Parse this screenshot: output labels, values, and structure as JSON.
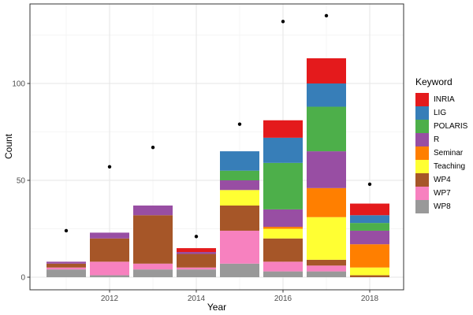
{
  "figure": {
    "background": "#ffffff"
  },
  "chart_data": {
    "type": "bar",
    "stacked": true,
    "title": "",
    "xlabel": "Year",
    "ylabel": "Count",
    "legend_title": "Keyword",
    "legend_position": "right",
    "grid": true,
    "x": [
      2011,
      2012,
      2013,
      2014,
      2015,
      2016,
      2017,
      2018
    ],
    "x_tick_years": [
      2012,
      2014,
      2016,
      2018
    ],
    "x_tick_labels": [
      "2012",
      "2014",
      "2016",
      "2018"
    ],
    "y_tick_values": [
      0,
      50,
      100
    ],
    "y_tick_labels": [
      "0",
      "50",
      "100"
    ],
    "y_minor_values": [
      25,
      75,
      125
    ],
    "x_minor_years": [
      2011,
      2013,
      2015,
      2017
    ],
    "ylim": [
      0,
      142
    ],
    "stack_note": "stacked bottom-to-top in reverse legend order (WP8 bottom, INRIA top)",
    "series": [
      {
        "name": "INRIA",
        "color": "#e41a1c",
        "values": [
          0,
          0,
          0,
          2,
          0,
          9,
          13,
          6
        ]
      },
      {
        "name": "LIG",
        "color": "#377eb8",
        "values": [
          0,
          0,
          0,
          0,
          10,
          13,
          12,
          4
        ]
      },
      {
        "name": "POLARIS",
        "color": "#4daf4a",
        "values": [
          0,
          0,
          0,
          0,
          5,
          24,
          23,
          4
        ]
      },
      {
        "name": "R",
        "color": "#984ea3",
        "values": [
          1,
          3,
          5,
          1,
          5,
          9,
          19,
          7
        ]
      },
      {
        "name": "Seminar",
        "color": "#ff7f00",
        "values": [
          0,
          0,
          0,
          0,
          0,
          1,
          15,
          12
        ]
      },
      {
        "name": "Teaching",
        "color": "#ffff33",
        "values": [
          0,
          0,
          0,
          0,
          8,
          5,
          22,
          4
        ]
      },
      {
        "name": "WP4",
        "color": "#a65628",
        "values": [
          2,
          12,
          25,
          7,
          13,
          12,
          3,
          1
        ]
      },
      {
        "name": "WP7",
        "color": "#f781bf",
        "values": [
          1,
          7,
          3,
          1,
          17,
          5,
          3,
          0
        ]
      },
      {
        "name": "WP8",
        "color": "#999999",
        "values": [
          4,
          1,
          4,
          4,
          7,
          3,
          3,
          0
        ]
      }
    ],
    "bar_totals": [
      8,
      23,
      37,
      15,
      65,
      81,
      113,
      38
    ],
    "points_series": {
      "name": "yearly-total-points",
      "marker": "circle",
      "color": "#000000",
      "values": [
        24,
        57,
        67,
        21,
        79,
        132,
        135,
        48
      ]
    }
  },
  "colors": {
    "panel_background": "#ffffff",
    "panel_border": "#333333",
    "grid_major": "#e6e6e6",
    "grid_minor": "#f2f2f2",
    "tick_mark": "#333333",
    "tick_label": "#4d4d4d",
    "axis_title": "#000000",
    "point": "#000000"
  }
}
